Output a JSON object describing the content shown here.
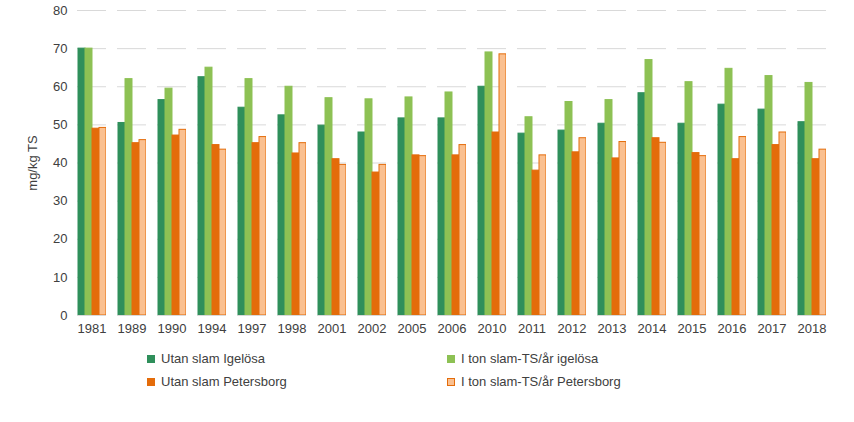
{
  "chart_data": {
    "type": "bar",
    "y_label": "mg/kg TS",
    "categories": [
      "1981",
      "1989",
      "1990",
      "1994",
      "1997",
      "1998",
      "2001",
      "2002",
      "2005",
      "2006",
      "2010",
      "2011",
      "2012",
      "2013",
      "2014",
      "2015",
      "2016",
      "2017",
      "2018"
    ],
    "series": [
      {
        "name": "Utan slam Igelösa",
        "color": "#2f8f5b",
        "values": [
          70,
          50.5,
          56.5,
          62.5,
          54.5,
          52.5,
          49.8,
          48,
          51.7,
          51.7,
          60,
          47.7,
          48.5,
          50.3,
          58.3,
          50.3,
          55.3,
          54,
          50.7
        ]
      },
      {
        "name": "I ton slam-TS/år igelösa",
        "color": "#8dc154",
        "values": [
          70,
          62,
          59.5,
          65,
          62,
          60,
          57,
          56.7,
          57.2,
          58.5,
          69,
          52,
          56,
          56.5,
          67,
          61.2,
          64.7,
          62.8,
          61
        ]
      },
      {
        "name": "Utan slam Petersborg",
        "color": "#e46c0a",
        "values": [
          49,
          45.2,
          47.2,
          44.7,
          45.2,
          42.5,
          41,
          37.5,
          42,
          42,
          48,
          38,
          42.8,
          41.2,
          46.5,
          42.6,
          41,
          44.7,
          41
        ]
      },
      {
        "name": "I ton slam-TS/år Petersborg",
        "color": "#fac090",
        "values": [
          49.2,
          46,
          48.7,
          43.5,
          46.8,
          45.2,
          39.5,
          39.5,
          41.8,
          44.7,
          68.5,
          42,
          46.5,
          45.5,
          45.3,
          41.8,
          46.8,
          48,
          43.5
        ]
      }
    ],
    "ylim": [
      0,
      80
    ],
    "yticks": [
      0,
      10,
      20,
      30,
      40,
      50,
      60,
      70,
      80
    ],
    "grid": true,
    "legend": "bottom"
  }
}
